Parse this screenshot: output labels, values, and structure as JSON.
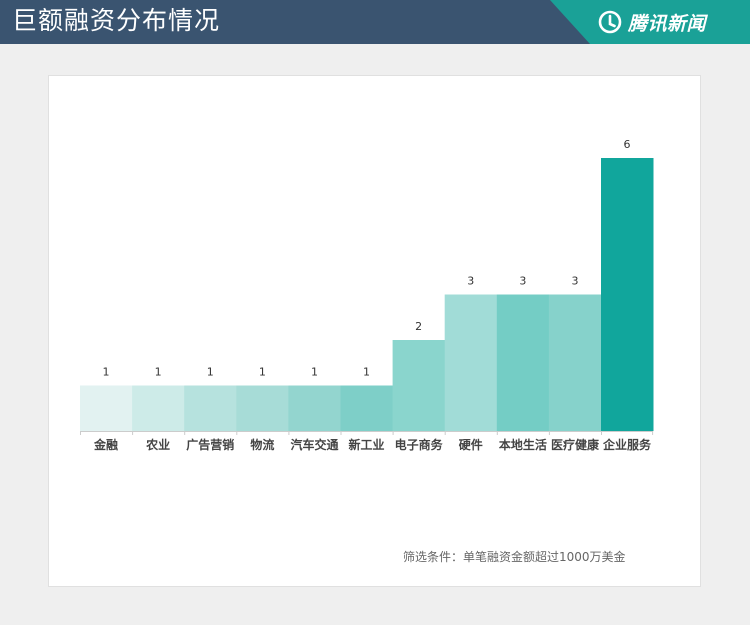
{
  "header": {
    "title": "巨额融资分布情况",
    "brand": "腾讯新闻",
    "brand_icon": "tencent-news-logo",
    "colors": {
      "bar": "#3a5470",
      "brand_tab": "#1aa197"
    }
  },
  "chart_data": {
    "type": "bar",
    "categories": [
      "金融",
      "农业",
      "广告营销",
      "物流",
      "汽车交通",
      "新工业",
      "电子商务",
      "硬件",
      "本地生活",
      "医疗健康",
      "企业服务"
    ],
    "values": [
      1,
      1,
      1,
      1,
      1,
      1,
      2,
      3,
      3,
      3,
      6
    ],
    "colors": [
      "#e2f2f1",
      "#cdebe8",
      "#b6e2de",
      "#a7dcd7",
      "#93d5cf",
      "#7ecfc8",
      "#8ad5cd",
      "#a1dcd7",
      "#74cdc5",
      "#86d2cb",
      "#11a69c"
    ],
    "ylim": [
      0,
      6
    ],
    "grid": false,
    "data_labels": true
  },
  "footnote": "筛选条件：单笔融资金额超过1000万美金"
}
